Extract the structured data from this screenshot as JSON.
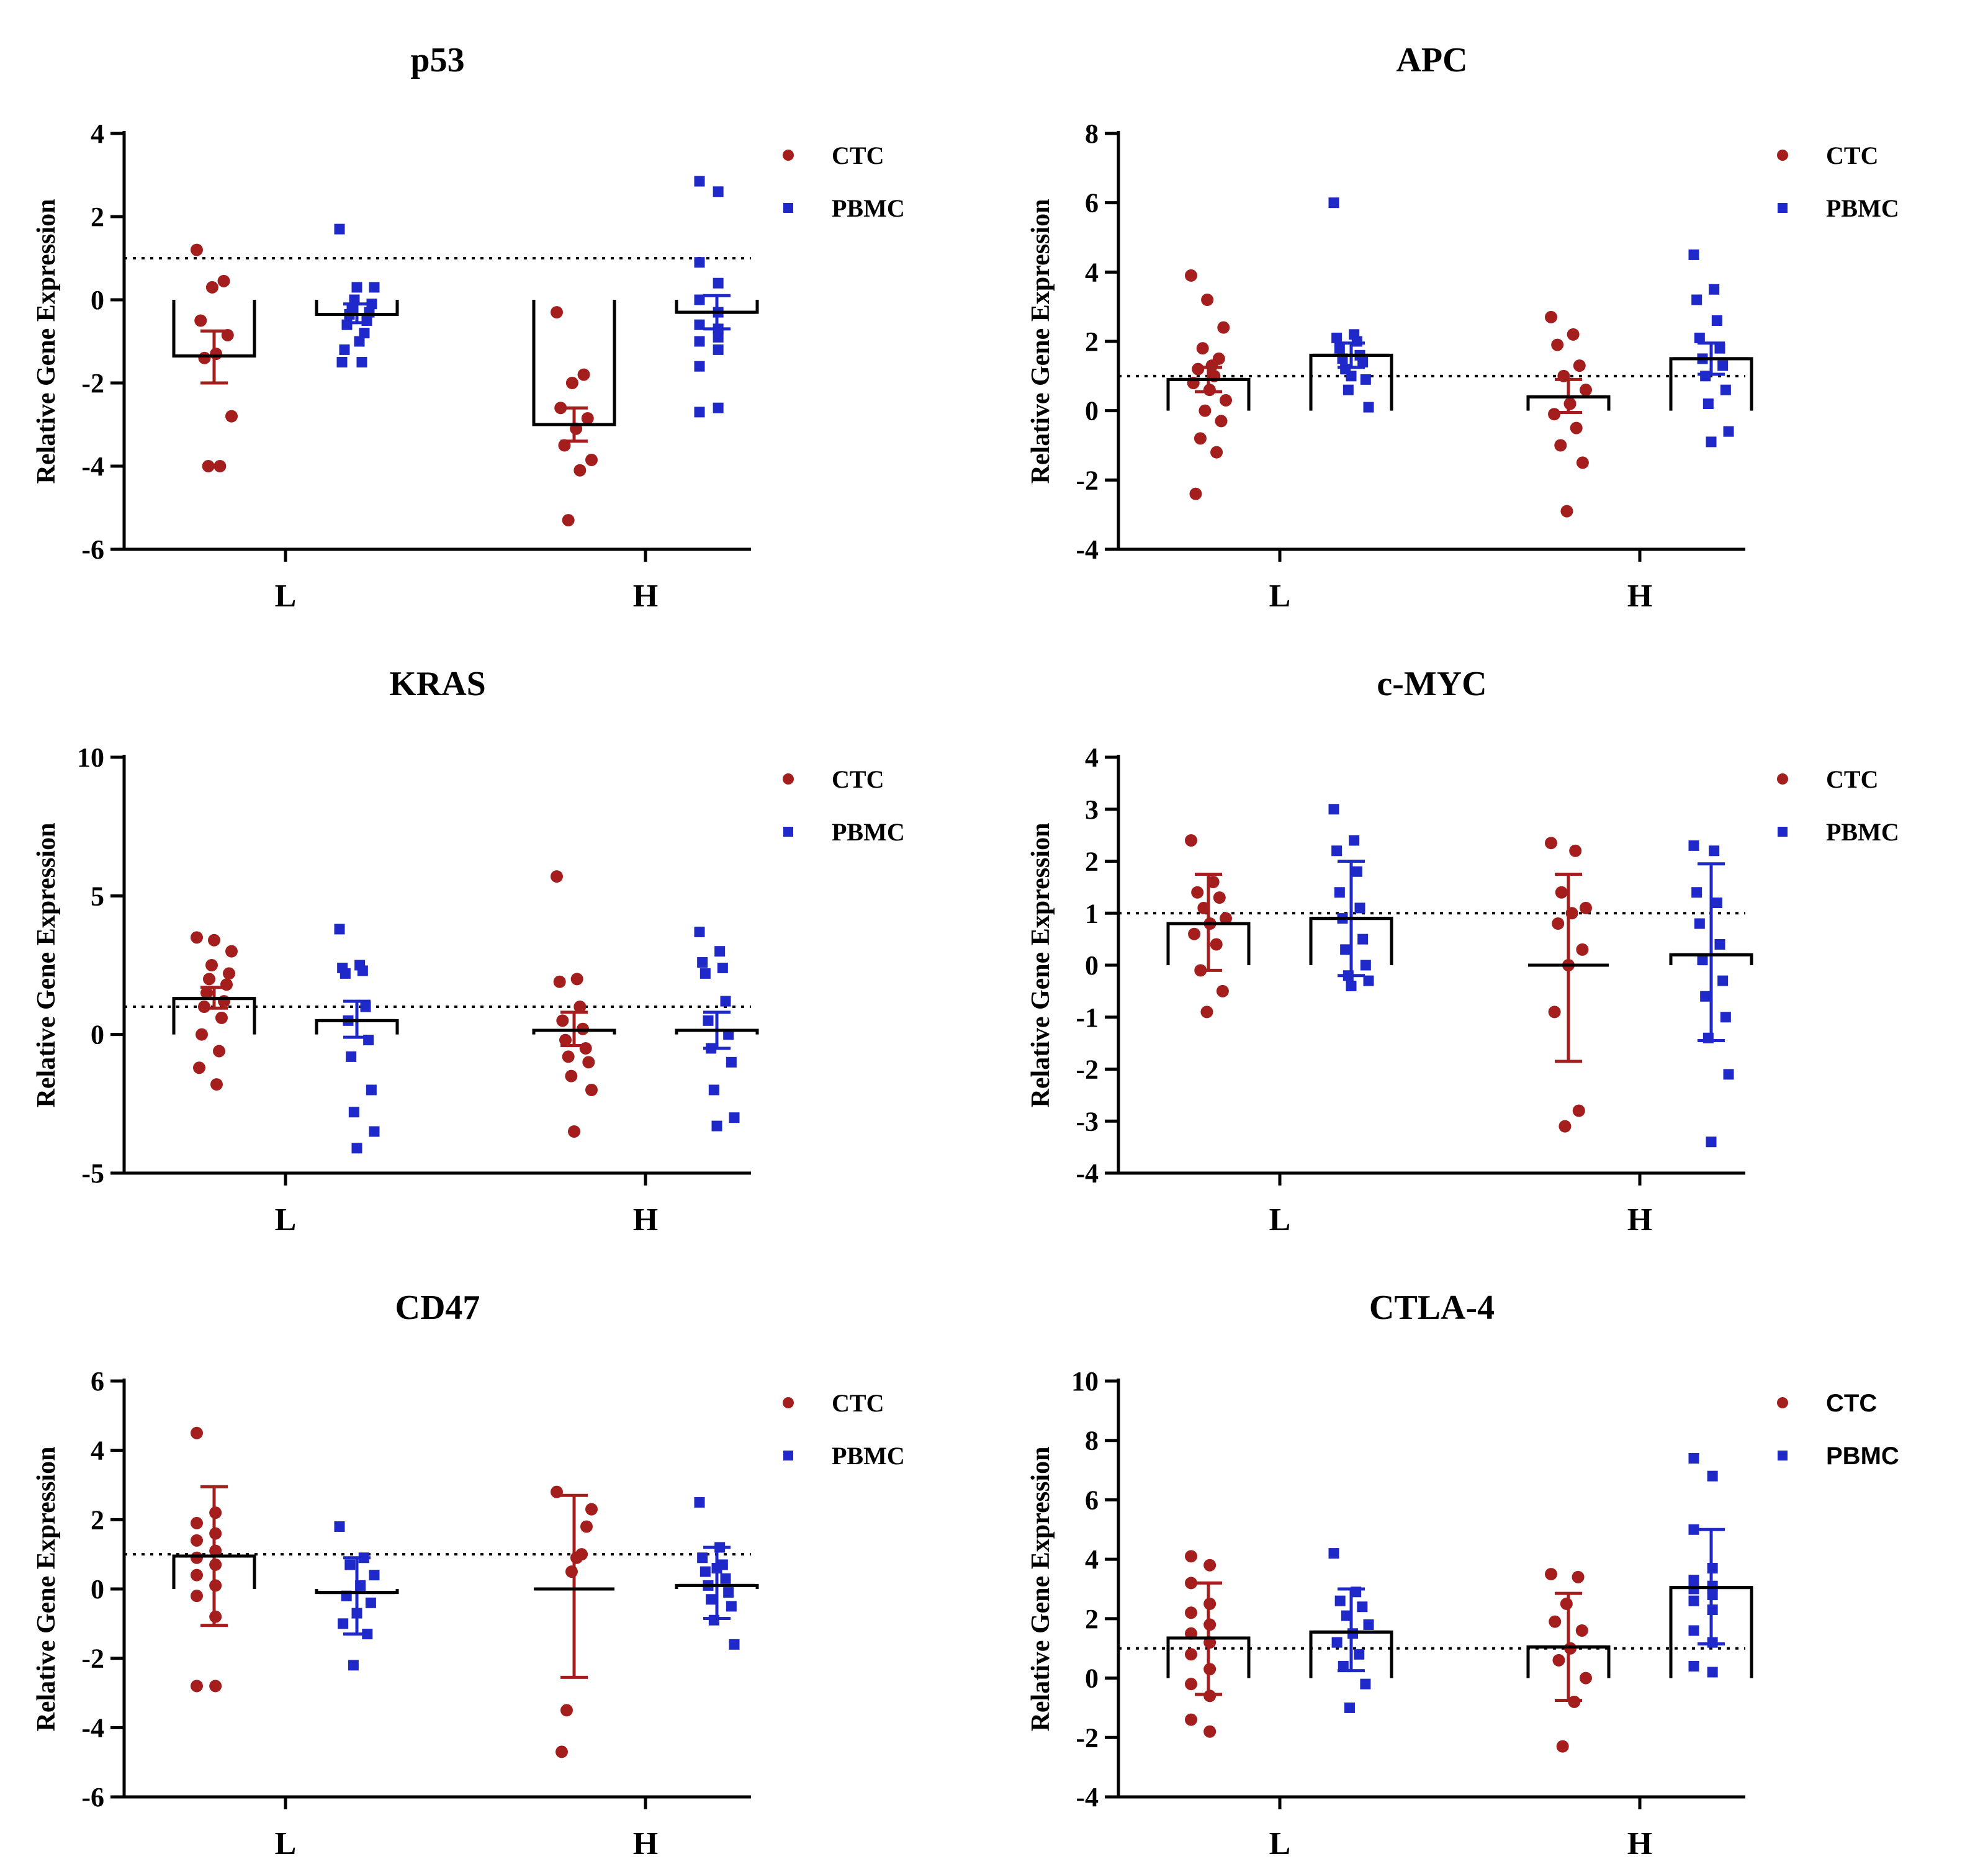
{
  "figure": {
    "ylabel": "Relative Gene Expression",
    "reference_line": 1
  },
  "colors": {
    "ctc": "#a51e1e",
    "pbmc": "#1f28c8",
    "axis": "#000000"
  },
  "chart_data": [
    {
      "type": "scatter",
      "title": "p53",
      "ylabel": "Relative Gene Expression",
      "categories": [
        "L",
        "H"
      ],
      "ylim": [
        -6,
        4
      ],
      "yticks": [
        4,
        2,
        0,
        -2,
        -4,
        -6
      ],
      "ytick_labels": [
        "4",
        "2",
        "0",
        "-2",
        "-4",
        "-6"
      ],
      "legend": [
        "CTC",
        "PBMC"
      ],
      "legend_font": "serif",
      "reference_line": 1,
      "series": [
        {
          "name": "CTC",
          "category": "L",
          "mean": -1.35,
          "err_low": -2.0,
          "err_high": -0.75,
          "points": [
            1.2,
            0.45,
            0.3,
            -0.5,
            -0.85,
            -1.3,
            -1.4,
            -2.8,
            -4.0,
            -4.0
          ]
        },
        {
          "name": "PBMC",
          "category": "L",
          "mean": -0.35,
          "err_low": -0.55,
          "err_high": -0.1,
          "points": [
            1.7,
            0.3,
            0.3,
            0.0,
            -0.1,
            -0.2,
            -0.3,
            -0.35,
            -0.5,
            -0.6,
            -0.8,
            -1.2,
            -1.5,
            -1.5,
            -1.0
          ]
        },
        {
          "name": "CTC",
          "category": "H",
          "mean": -3.0,
          "err_low": -3.4,
          "err_high": -2.6,
          "points": [
            -0.3,
            -1.8,
            -2.0,
            -2.6,
            -2.85,
            -3.1,
            -3.5,
            -3.85,
            -4.1,
            -5.3
          ]
        },
        {
          "name": "PBMC",
          "category": "H",
          "mean": -0.3,
          "err_low": -0.7,
          "err_high": 0.1,
          "points": [
            2.85,
            2.6,
            0.9,
            0.4,
            0.0,
            -0.3,
            -0.6,
            -0.9,
            -1.0,
            -1.2,
            -1.6,
            -2.6,
            -2.7,
            -0.7
          ]
        }
      ]
    },
    {
      "type": "scatter",
      "title": "APC",
      "ylabel": "Relative Gene Expression",
      "categories": [
        "L",
        "H"
      ],
      "ylim": [
        -4,
        8
      ],
      "yticks": [
        8,
        6,
        4,
        2,
        0,
        -2,
        -4
      ],
      "ytick_labels": [
        "8",
        "6",
        "4",
        "2",
        "0",
        "-2",
        "-4"
      ],
      "legend": [
        "CTC",
        "PBMC"
      ],
      "legend_font": "serif",
      "reference_line": 1,
      "series": [
        {
          "name": "CTC",
          "category": "L",
          "mean": 0.9,
          "err_low": 0.55,
          "err_high": 1.25,
          "points": [
            3.9,
            3.2,
            2.4,
            1.8,
            1.5,
            1.2,
            1.0,
            0.8,
            0.6,
            0.3,
            0.0,
            -0.3,
            -0.8,
            -1.2,
            -2.4,
            1.3
          ]
        },
        {
          "name": "PBMC",
          "category": "L",
          "mean": 1.6,
          "err_low": 1.25,
          "err_high": 1.95,
          "points": [
            6.0,
            2.2,
            2.1,
            2.0,
            1.8,
            1.6,
            1.5,
            1.4,
            1.2,
            0.9,
            0.6,
            0.1,
            1.0
          ]
        },
        {
          "name": "CTC",
          "category": "H",
          "mean": 0.4,
          "err_low": -0.05,
          "err_high": 0.9,
          "points": [
            2.7,
            2.2,
            1.9,
            1.3,
            1.0,
            0.6,
            0.2,
            -0.1,
            -0.5,
            -1.0,
            -1.5,
            -2.9
          ]
        },
        {
          "name": "PBMC",
          "category": "H",
          "mean": 1.5,
          "err_low": 1.05,
          "err_high": 1.95,
          "points": [
            4.5,
            3.5,
            3.2,
            2.6,
            2.1,
            1.8,
            1.5,
            1.3,
            1.0,
            0.6,
            0.2,
            -0.6,
            -0.9
          ]
        }
      ]
    },
    {
      "type": "scatter",
      "title": "KRAS",
      "ylabel": "Relative Gene Expression",
      "categories": [
        "L",
        "H"
      ],
      "ylim": [
        -5,
        10
      ],
      "yticks": [
        10,
        5,
        0,
        -5
      ],
      "ytick_labels": [
        "10",
        "5",
        "0",
        "-5"
      ],
      "legend": [
        "CTC",
        "PBMC"
      ],
      "legend_font": "serif",
      "reference_line": 1,
      "series": [
        {
          "name": "CTC",
          "category": "L",
          "mean": 1.3,
          "err_low": 0.95,
          "err_high": 1.7,
          "points": [
            3.5,
            3.4,
            3.0,
            2.5,
            2.2,
            2.0,
            1.8,
            1.5,
            1.2,
            1.0,
            0.6,
            0.0,
            -0.6,
            -1.2,
            -1.8
          ]
        },
        {
          "name": "PBMC",
          "category": "L",
          "mean": 0.5,
          "err_low": -0.1,
          "err_high": 1.2,
          "points": [
            3.8,
            2.5,
            2.4,
            2.3,
            2.2,
            1.0,
            0.5,
            -0.2,
            -0.8,
            -2.0,
            -2.8,
            -3.5,
            -4.1
          ]
        },
        {
          "name": "CTC",
          "category": "H",
          "mean": 0.15,
          "err_low": -0.4,
          "err_high": 0.8,
          "points": [
            5.7,
            2.0,
            1.9,
            1.0,
            0.5,
            0.2,
            -0.2,
            -0.5,
            -0.8,
            -1.0,
            -1.5,
            -2.0,
            -3.5
          ]
        },
        {
          "name": "PBMC",
          "category": "H",
          "mean": 0.15,
          "err_low": -0.5,
          "err_high": 0.8,
          "points": [
            3.7,
            3.0,
            2.6,
            2.4,
            2.2,
            1.2,
            0.5,
            0.0,
            -0.5,
            -1.0,
            -2.0,
            -3.0,
            -3.3
          ]
        }
      ]
    },
    {
      "type": "scatter",
      "title": "c-MYC",
      "ylabel": "Relative Gene Expression",
      "categories": [
        "L",
        "H"
      ],
      "ylim": [
        -4,
        4
      ],
      "yticks": [
        4,
        3,
        2,
        1,
        0,
        -1,
        -2,
        -3,
        -4
      ],
      "ytick_labels": [
        "4",
        "3",
        "2",
        "1",
        "0",
        "-1",
        "-2",
        "-3",
        "-4"
      ],
      "legend": [
        "CTC",
        "PBMC"
      ],
      "legend_font": "serif",
      "reference_line": 1,
      "series": [
        {
          "name": "CTC",
          "category": "L",
          "mean": 0.8,
          "err_low": -0.1,
          "err_high": 1.75,
          "points": [
            2.4,
            1.6,
            1.4,
            1.3,
            1.1,
            0.9,
            0.8,
            0.6,
            0.4,
            -0.1,
            -0.5,
            -0.9
          ]
        },
        {
          "name": "PBMC",
          "category": "L",
          "mean": 0.9,
          "err_low": -0.2,
          "err_high": 2.0,
          "points": [
            3.0,
            2.4,
            2.2,
            1.8,
            1.4,
            1.1,
            0.9,
            0.5,
            0.3,
            0.0,
            -0.2,
            -0.3,
            -0.4
          ]
        },
        {
          "name": "CTC",
          "category": "H",
          "mean": 0.0,
          "err_low": -1.85,
          "err_high": 1.75,
          "points": [
            2.35,
            2.2,
            1.4,
            1.1,
            1.0,
            0.8,
            0.3,
            0.0,
            -0.9,
            -2.8,
            -3.1
          ]
        },
        {
          "name": "PBMC",
          "category": "H",
          "mean": 0.2,
          "err_low": -1.45,
          "err_high": 1.95,
          "points": [
            2.3,
            2.2,
            1.4,
            1.2,
            0.8,
            0.4,
            0.1,
            -0.3,
            -0.6,
            -1.0,
            -1.4,
            -2.1,
            -3.4
          ]
        }
      ]
    },
    {
      "type": "scatter",
      "title": "CD47",
      "ylabel": "Relative Gene Expression",
      "categories": [
        "L",
        "H"
      ],
      "ylim": [
        -6,
        6
      ],
      "yticks": [
        6,
        4,
        2,
        0,
        -2,
        -4,
        -6
      ],
      "ytick_labels": [
        "6",
        "4",
        "2",
        "0",
        "-2",
        "-4",
        "-6"
      ],
      "legend": [
        "CTC",
        "PBMC"
      ],
      "legend_font": "serif",
      "reference_line": 1,
      "series": [
        {
          "name": "CTC",
          "category": "L",
          "mean": 0.95,
          "err_low": -1.05,
          "err_high": 2.95,
          "points": [
            4.5,
            2.2,
            1.9,
            1.6,
            1.4,
            1.1,
            0.9,
            0.7,
            0.4,
            0.1,
            -0.2,
            -0.8,
            -2.8,
            -2.8
          ]
        },
        {
          "name": "PBMC",
          "category": "L",
          "mean": -0.1,
          "err_low": -1.3,
          "err_high": 0.9,
          "points": [
            1.8,
            0.9,
            0.7,
            0.4,
            0.1,
            -0.2,
            -0.4,
            -0.7,
            -1.0,
            -1.3,
            -2.2
          ]
        },
        {
          "name": "CTC",
          "category": "H",
          "mean": 0.0,
          "err_low": -2.55,
          "err_high": 2.7,
          "points": [
            2.8,
            2.3,
            1.8,
            1.0,
            0.9,
            0.5,
            -3.5,
            -4.7
          ]
        },
        {
          "name": "PBMC",
          "category": "H",
          "mean": 0.1,
          "err_low": -0.85,
          "err_high": 1.2,
          "points": [
            2.5,
            1.2,
            0.9,
            0.7,
            0.5,
            0.3,
            0.1,
            -0.1,
            -0.3,
            -0.5,
            -0.9,
            -1.6,
            0.6
          ]
        }
      ]
    },
    {
      "type": "scatter",
      "title": "CTLA-4",
      "ylabel": "Relative Gene Expression",
      "categories": [
        "L",
        "H"
      ],
      "ylim": [
        -4,
        10
      ],
      "yticks": [
        10,
        8,
        6,
        4,
        2,
        0,
        -2,
        -4
      ],
      "ytick_labels": [
        "10",
        "8",
        "6",
        "4",
        "2",
        "0",
        "-2",
        "-4"
      ],
      "legend": [
        "CTC",
        "PBMC"
      ],
      "legend_font": "sans",
      "reference_line": 1,
      "series": [
        {
          "name": "CTC",
          "category": "L",
          "mean": 1.35,
          "err_low": -0.55,
          "err_high": 3.2,
          "points": [
            4.1,
            3.8,
            3.2,
            2.5,
            2.2,
            1.8,
            1.5,
            1.2,
            0.8,
            0.3,
            -0.2,
            -0.6,
            -1.4,
            -1.8
          ]
        },
        {
          "name": "PBMC",
          "category": "L",
          "mean": 1.55,
          "err_low": 0.25,
          "err_high": 3.0,
          "points": [
            4.2,
            2.9,
            2.6,
            2.4,
            2.1,
            1.8,
            1.5,
            1.2,
            0.8,
            0.4,
            -0.2,
            -1.0
          ]
        },
        {
          "name": "CTC",
          "category": "H",
          "mean": 1.05,
          "err_low": -0.75,
          "err_high": 2.85,
          "points": [
            3.5,
            3.4,
            2.5,
            1.9,
            1.6,
            1.0,
            0.6,
            0.0,
            -0.8,
            -2.3
          ]
        },
        {
          "name": "PBMC",
          "category": "H",
          "mean": 3.05,
          "err_low": 1.15,
          "err_high": 5.0,
          "points": [
            7.4,
            6.8,
            5.0,
            3.7,
            3.3,
            3.1,
            3.0,
            2.8,
            2.6,
            2.3,
            1.6,
            1.2,
            0.4,
            0.2
          ]
        }
      ]
    }
  ]
}
